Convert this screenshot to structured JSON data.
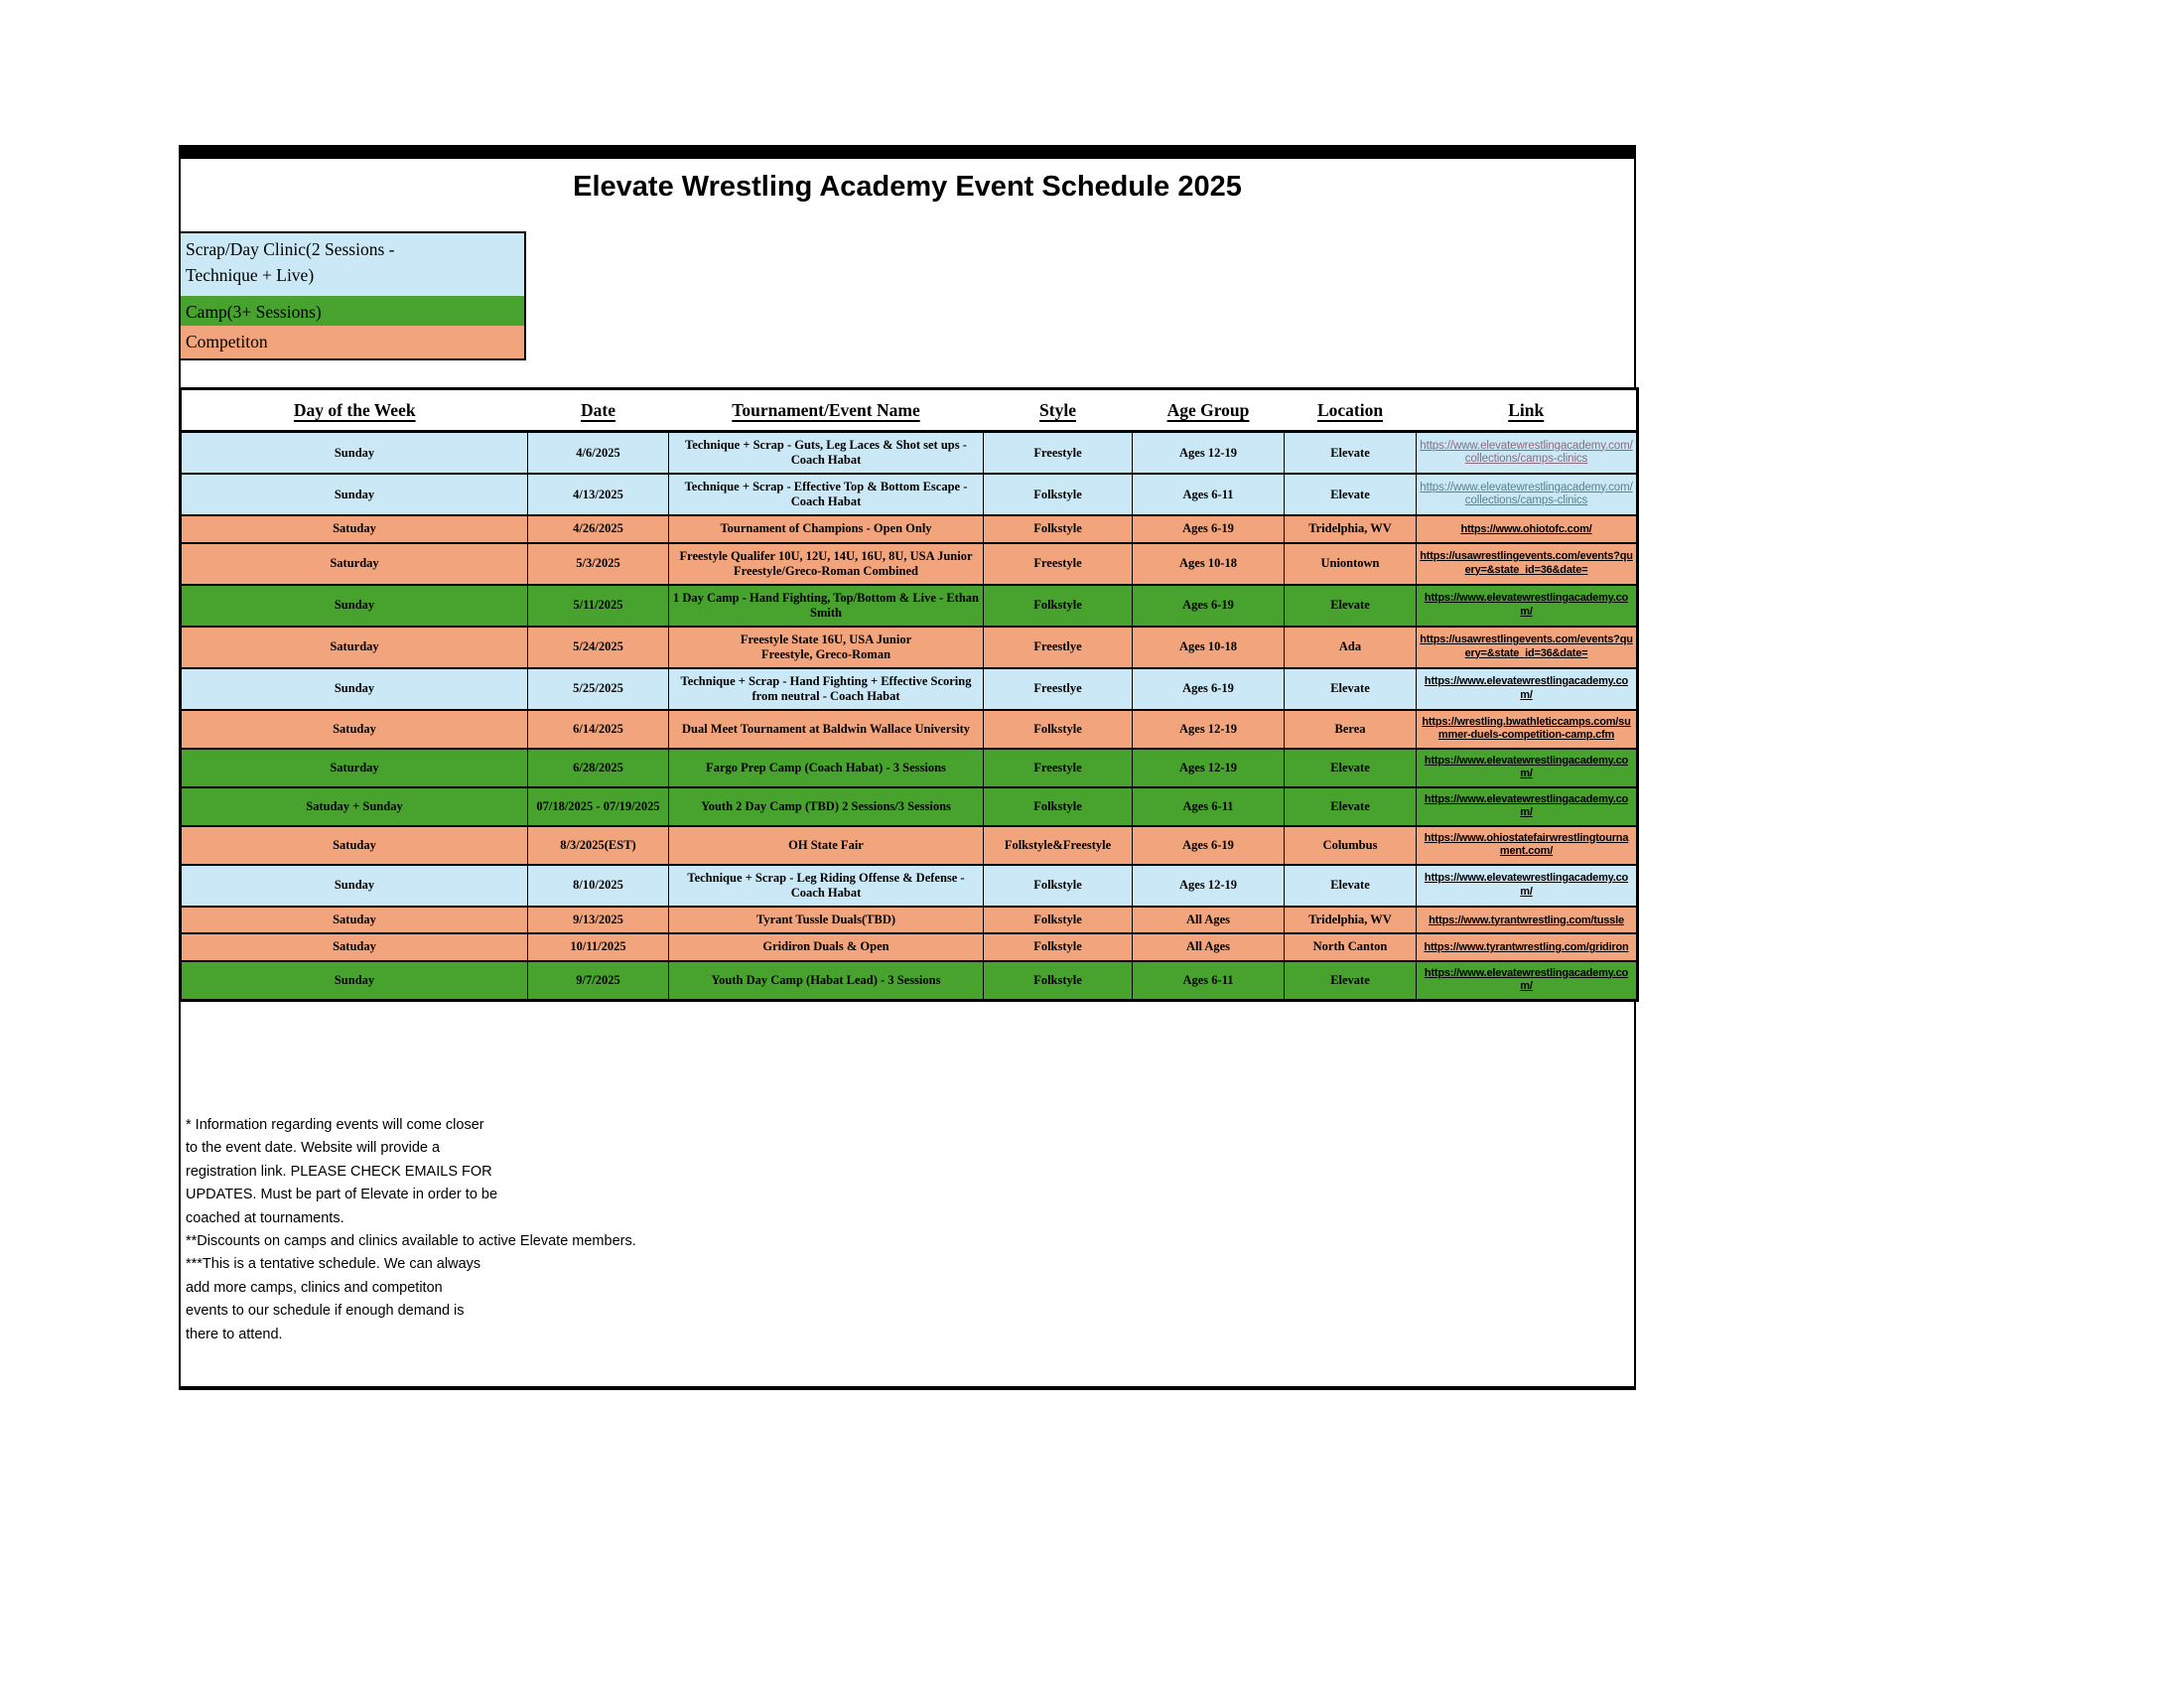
{
  "title": "Elevate Wrestling Academy Event Schedule 2025",
  "category_colors": {
    "clinic": "#cbe8f6",
    "camp": "#47a32e",
    "competition": "#f2a47c"
  },
  "legend": [
    {
      "key": "clinic",
      "label": "Scrap/Day Clinic(2 Sessions -\nTechnique + Live)"
    },
    {
      "key": "camp",
      "label": "Camp(3+ Sessions)"
    },
    {
      "key": "competition",
      "label": "Competiton"
    }
  ],
  "table": {
    "headers": [
      "Day of the Week",
      "Date",
      "Tournament/Event Name",
      "Style",
      "Age Group",
      "Location",
      "Link"
    ],
    "rows": [
      {
        "category": "clinic",
        "day": "Sunday",
        "date": "4/6/2025",
        "event": "Technique + Scrap - Guts, Leg Laces & Shot set ups - Coach Habat",
        "style": "Freestyle",
        "age": "Ages 12-19",
        "location": "Elevate",
        "link": "https://www.elevatewrestlingacademy.com/collections/camps-clinics",
        "link_variant": "muted",
        "link_color": "#8a6b80"
      },
      {
        "category": "clinic",
        "day": "Sunday",
        "date": "4/13/2025",
        "event": "Technique + Scrap - Effective Top & Bottom Escape - Coach Habat",
        "style": "Folkstyle",
        "age": "Ages 6-11",
        "location": "Elevate",
        "link": "https://www.elevatewrestlingacademy.com/collections/camps-clinics",
        "link_variant": "muted",
        "link_color": "#57838f"
      },
      {
        "category": "competition",
        "day": "Satuday",
        "date": "4/26/2025",
        "event": "Tournament of Champions - Open Only",
        "style": "Folkstyle",
        "age": "Ages 6-19",
        "location": "Tridelphia, WV",
        "link": "https://www.ohiotofc.com/",
        "link_variant": "bold",
        "link_color": "#000000"
      },
      {
        "category": "competition",
        "day": "Saturday",
        "date": "5/3/2025",
        "event": "Freestyle Qualifer 10U, 12U, 14U, 16U, 8U, USA Junior\nFreestyle/Greco-Roman Combined",
        "style": "Freestyle",
        "age": "Ages 10-18",
        "location": "Uniontown",
        "link": "https://usawrestlingevents.com/events?query=&state_id=36&date=",
        "link_variant": "bold",
        "link_color": "#000000"
      },
      {
        "category": "camp",
        "day": "Sunday",
        "date": "5/11/2025",
        "event": "1 Day Camp - Hand Fighting, Top/Bottom & Live - Ethan Smith",
        "style": "Folkstyle",
        "age": "Ages 6-19",
        "location": "Elevate",
        "link": "https://www.elevatewrestlingacademy.com/",
        "link_variant": "bold",
        "link_color": "#000000"
      },
      {
        "category": "competition",
        "day": "Saturday",
        "date": "5/24/2025",
        "event": "Freestyle State 16U, USA Junior\nFreestyle, Greco-Roman",
        "style": "Freestlye",
        "age": "Ages 10-18",
        "location": "Ada",
        "link": "https://usawrestlingevents.com/events?query=&state_id=36&date=",
        "link_variant": "bold",
        "link_color": "#000000"
      },
      {
        "category": "clinic",
        "day": "Sunday",
        "date": "5/25/2025",
        "event": "Technique + Scrap - Hand Fighting + Effective Scoring from neutral - Coach Habat",
        "style": "Freestlye",
        "age": "Ages 6-19",
        "location": "Elevate",
        "link": "https://www.elevatewrestlingacademy.com/",
        "link_variant": "bold",
        "link_color": "#000000"
      },
      {
        "category": "competition",
        "day": "Satuday",
        "date": "6/14/2025",
        "event": "Dual Meet Tournament at Baldwin Wallace University",
        "style": "Folkstyle",
        "age": "Ages 12-19",
        "location": "Berea",
        "link": "https://wrestling.bwathleticcamps.com/summer-duels-competition-camp.cfm",
        "link_variant": "bold",
        "link_color": "#000000"
      },
      {
        "category": "camp",
        "day": "Saturday",
        "date": "6/28/2025",
        "event": "Fargo Prep Camp (Coach Habat) - 3 Sessions",
        "style": "Freestyle",
        "age": "Ages 12-19",
        "location": "Elevate",
        "link": "https://www.elevatewrestlingacademy.com/",
        "link_variant": "bold",
        "link_color": "#000000"
      },
      {
        "category": "camp",
        "day": "Satuday + Sunday",
        "date": "07/18/2025 - 07/19/2025",
        "event": "Youth 2 Day Camp (TBD) 2 Sessions/3 Sessions",
        "style": "Folkstyle",
        "age": "Ages 6-11",
        "location": "Elevate",
        "link": "https://www.elevatewrestlingacademy.com/",
        "link_variant": "bold",
        "link_color": "#000000"
      },
      {
        "category": "competition",
        "day": "Satuday",
        "date": "8/3/2025(EST)",
        "event": "OH State Fair",
        "style": "Folkstyle&Freestyle",
        "age": "Ages 6-19",
        "location": "Columbus",
        "link": "https://www.ohiostatefairwrestlingtournament.com/",
        "link_variant": "bold",
        "link_color": "#000000"
      },
      {
        "category": "clinic",
        "day": "Sunday",
        "date": "8/10/2025",
        "event": "Technique + Scrap - Leg Riding Offense & Defense - Coach Habat",
        "style": "Folkstyle",
        "age": "Ages 12-19",
        "location": "Elevate",
        "link": "https://www.elevatewrestlingacademy.com/",
        "link_variant": "bold",
        "link_color": "#000000"
      },
      {
        "category": "competition",
        "day": "Satuday",
        "date": "9/13/2025",
        "event": "Tyrant Tussle Duals(TBD)",
        "style": "Folkstyle",
        "age": "All Ages",
        "location": "Tridelphia, WV",
        "link": "https://www.tyrantwrestling.com/tussle",
        "link_variant": "bold",
        "link_color": "#000000"
      },
      {
        "category": "competition",
        "day": "Satuday",
        "date": "10/11/2025",
        "event": "Gridiron Duals & Open",
        "style": "Folkstyle",
        "age": "All Ages",
        "location": "North Canton",
        "link": "https://www.tyrantwrestling.com/gridiron",
        "link_variant": "bold",
        "link_color": "#000000"
      },
      {
        "category": "camp",
        "day": "Sunday",
        "date": "9/7/2025",
        "event": "Youth Day Camp (Habat Lead) - 3 Sessions",
        "style": "Folkstyle",
        "age": "Ages 6-11",
        "location": "Elevate",
        "link": "https://www.elevatewrestlingacademy.com/",
        "link_variant": "bold",
        "link_color": "#000000"
      }
    ]
  },
  "notes": [
    "* Information regarding events will come closer",
    "to the event date. Website will provide a",
    "registration link. PLEASE CHECK EMAILS FOR",
    "UPDATES. Must be part of Elevate in order to be",
    "coached at tournaments.",
    "**Discounts on camps and clinics available to active Elevate members.",
    "***This is a tentative schedule. We can always",
    "add more camps, clinics and competiton",
    "events to our schedule if enough demand is",
    "there to attend."
  ]
}
